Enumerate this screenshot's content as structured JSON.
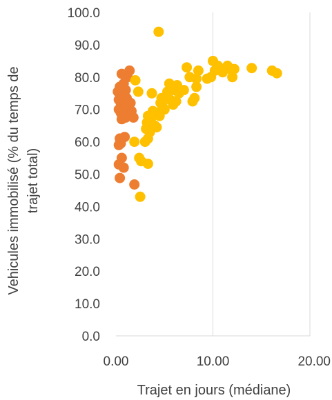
{
  "chart_data": {
    "type": "scatter",
    "title": "",
    "xlabel": "Trajet en jours (médiane)",
    "ylabel_lines": [
      "Vehicules immobilisé (% du temps de",
      "trajet total)"
    ],
    "xlim": [
      0,
      20
    ],
    "ylim": [
      0,
      100
    ],
    "x_ticks": [
      "0.00",
      "10.00",
      "20.00"
    ],
    "y_ticks": [
      "0.0",
      "10.0",
      "20.0",
      "30.0",
      "40.0",
      "50.0",
      "60.0",
      "70.0",
      "80.0",
      "90.0",
      "100.0"
    ],
    "grid": "vertical",
    "legend": "none",
    "series": [
      {
        "color": "#ED7D31",
        "points": [
          [
            0.2,
            75.5
          ],
          [
            0.4,
            77.0
          ],
          [
            0.6,
            81.0
          ],
          [
            0.8,
            78.0
          ],
          [
            1.0,
            76.0
          ],
          [
            1.2,
            80.0
          ],
          [
            1.4,
            82.0
          ],
          [
            0.3,
            73.0
          ],
          [
            0.5,
            72.0
          ],
          [
            0.7,
            74.0
          ],
          [
            0.9,
            71.5
          ],
          [
            1.1,
            73.5
          ],
          [
            1.3,
            71.0
          ],
          [
            1.5,
            72.0
          ],
          [
            0.3,
            70.0
          ],
          [
            0.5,
            69.0
          ],
          [
            0.7,
            68.0
          ],
          [
            1.0,
            67.5
          ],
          [
            1.2,
            70.5
          ],
          [
            1.6,
            69.5
          ],
          [
            1.8,
            67.5
          ],
          [
            0.6,
            67.0
          ],
          [
            0.4,
            61.0
          ],
          [
            0.9,
            61.5
          ],
          [
            0.5,
            59.5
          ],
          [
            0.3,
            59.0
          ],
          [
            0.3,
            53.0
          ],
          [
            0.6,
            55.0
          ],
          [
            0.8,
            52.0
          ],
          [
            0.4,
            48.8
          ],
          [
            1.9,
            46.8
          ]
        ]
      },
      {
        "color": "#FFC000",
        "points": [
          [
            2.0,
            79.0
          ],
          [
            2.3,
            75.5
          ],
          [
            1.9,
            60.0
          ],
          [
            2.4,
            55.0
          ],
          [
            2.6,
            54.0
          ],
          [
            2.5,
            43.0
          ],
          [
            3.3,
            53.2
          ],
          [
            3.0,
            60.0
          ],
          [
            3.3,
            61.0
          ],
          [
            3.1,
            64.0
          ],
          [
            3.5,
            63.0
          ],
          [
            3.2,
            66.0
          ],
          [
            3.6,
            67.0
          ],
          [
            4.0,
            65.0
          ],
          [
            4.2,
            64.5
          ],
          [
            3.3,
            68.0
          ],
          [
            3.8,
            69.5
          ],
          [
            4.2,
            69.0
          ],
          [
            3.7,
            75.0
          ],
          [
            4.5,
            68.0
          ],
          [
            4.6,
            72.0
          ],
          [
            4.8,
            71.0
          ],
          [
            5.0,
            70.0
          ],
          [
            4.7,
            73.5
          ],
          [
            5.2,
            74.0
          ],
          [
            5.6,
            73.0
          ],
          [
            5.3,
            75.5
          ],
          [
            5.8,
            77.0
          ],
          [
            5.5,
            78.0
          ],
          [
            6.0,
            76.0
          ],
          [
            6.3,
            77.5
          ],
          [
            6.5,
            75.0
          ],
          [
            5.9,
            71.5
          ],
          [
            6.2,
            72.5
          ],
          [
            7.0,
            76.0
          ],
          [
            7.3,
            83.0
          ],
          [
            7.6,
            80.0
          ],
          [
            7.9,
            72.5
          ],
          [
            8.1,
            73.5
          ],
          [
            8.3,
            79.5
          ],
          [
            8.5,
            82.0
          ],
          [
            8.3,
            77.0
          ],
          [
            9.4,
            79.5
          ],
          [
            9.8,
            80.0
          ],
          [
            10.0,
            85.0
          ],
          [
            10.2,
            82.0
          ],
          [
            10.5,
            83.5
          ],
          [
            11.0,
            81.5
          ],
          [
            11.5,
            83.5
          ],
          [
            11.8,
            82.5
          ],
          [
            12.0,
            80.0
          ],
          [
            12.2,
            82.5
          ],
          [
            14.0,
            82.8
          ],
          [
            16.1,
            82.0
          ],
          [
            16.6,
            81.2
          ],
          [
            4.4,
            94.0
          ]
        ]
      }
    ]
  }
}
